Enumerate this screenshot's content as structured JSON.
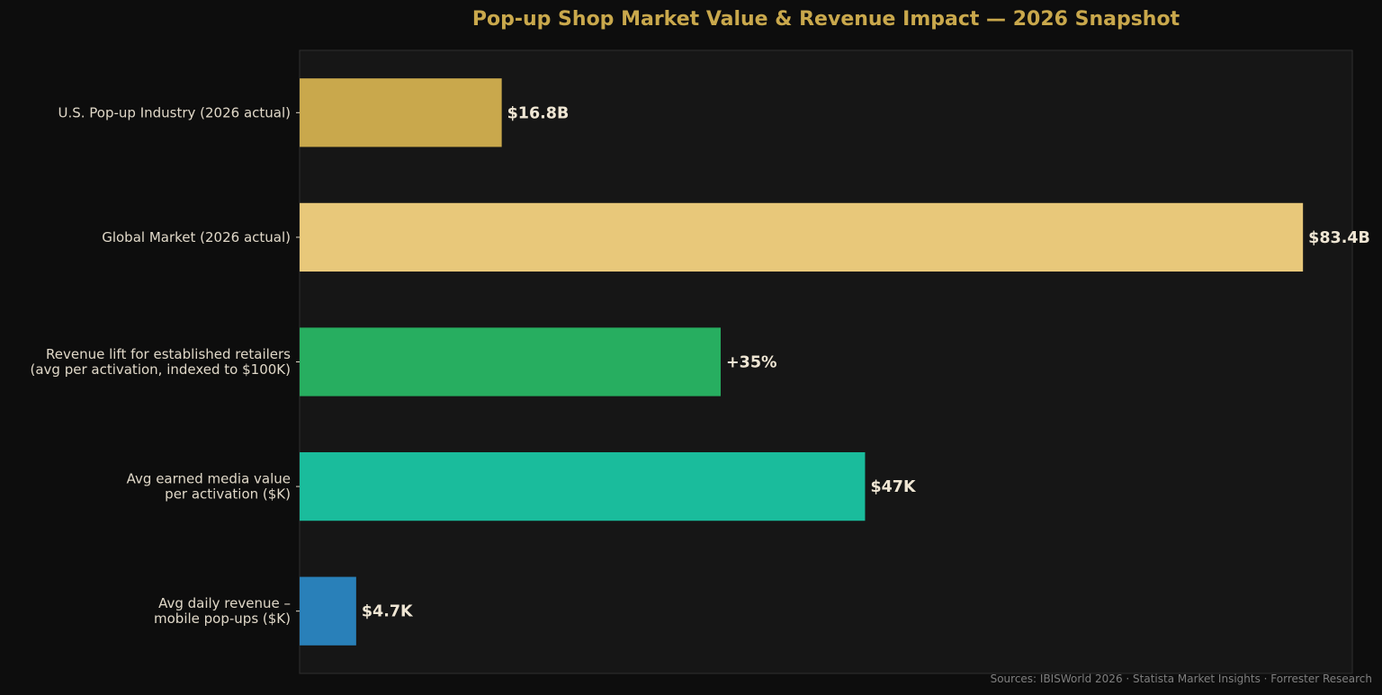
{
  "chart_data": {
    "type": "bar",
    "orientation": "horizontal",
    "title": "Pop-up Shop Market Value & Revenue Impact — 2026 Snapshot",
    "categories": [
      [
        "U.S. Pop-up Industry (2026 actual)"
      ],
      [
        "Global Market (2026 actual)"
      ],
      [
        "Revenue lift for established retailers",
        "(avg per activation, indexed to $100K)"
      ],
      [
        "Avg earned media value",
        "per activation ($K)"
      ],
      [
        "Avg daily revenue –",
        "mobile pop-ups ($K)"
      ]
    ],
    "values": [
      16.8,
      83.4,
      35,
      47,
      4.7
    ],
    "value_labels": [
      "$16.8B",
      "$83.4B",
      "+35%",
      "$47K",
      "$4.7K"
    ],
    "colors": [
      "#c9a84c",
      "#e8c87a",
      "#27ae60",
      "#1abc9c",
      "#2980b9"
    ],
    "xlim": [
      0,
      87.5
    ],
    "grid": false,
    "legend": "none",
    "source_note": "Sources: IBISWorld 2026 · Statista Market Insights · Forrester Research"
  },
  "theme": {
    "page_bg": "#0d0d0d",
    "plot_bg": "#161616",
    "plot_border": "#2e2e2e",
    "title_color": "#c9a84c",
    "label_color": "#e0d8c8",
    "value_label_color": "#efe6d4",
    "source_color": "#7f7f7f"
  }
}
